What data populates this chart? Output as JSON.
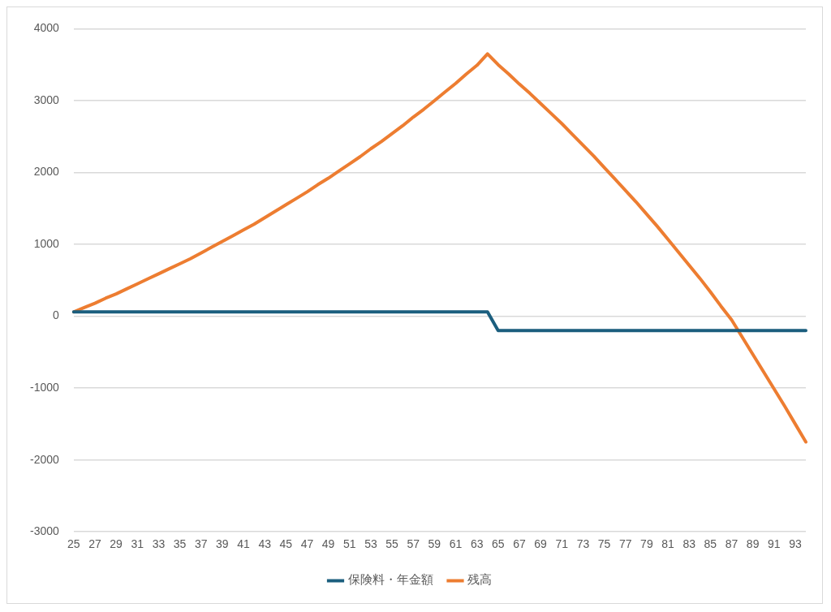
{
  "chart_data": {
    "type": "line",
    "categories": [
      "25",
      null,
      "27",
      null,
      "29",
      null,
      "31",
      null,
      "33",
      null,
      "35",
      null,
      "37",
      null,
      "39",
      null,
      "41",
      null,
      "43",
      null,
      "45",
      null,
      "47",
      null,
      "49",
      null,
      "51",
      null,
      "53",
      null,
      "55",
      null,
      "57",
      null,
      "59",
      null,
      "61",
      null,
      "63",
      null,
      "65",
      null,
      "67",
      null,
      "69",
      null,
      "71",
      null,
      "73",
      null,
      "75",
      null,
      "77",
      null,
      "79",
      null,
      "81",
      null,
      "83",
      null,
      "85",
      null,
      "87",
      null,
      "89",
      null,
      "91",
      null,
      "93",
      null
    ],
    "series": [
      {
        "name": "保険料・年金額",
        "color": "#1b5e7e",
        "values": [
          60,
          60,
          60,
          60,
          60,
          60,
          60,
          60,
          60,
          60,
          60,
          60,
          60,
          60,
          60,
          60,
          60,
          60,
          60,
          60,
          60,
          60,
          60,
          60,
          60,
          60,
          60,
          60,
          60,
          60,
          60,
          60,
          60,
          60,
          60,
          60,
          60,
          60,
          60,
          60,
          -200,
          -200,
          -200,
          -200,
          -200,
          -200,
          -200,
          -200,
          -200,
          -200,
          -200,
          -200,
          -200,
          -200,
          -200,
          -200,
          -200,
          -200,
          -200,
          -200,
          -200,
          -200,
          -200,
          -200,
          -200,
          -200,
          -200,
          -200,
          -200,
          -200
        ]
      },
      {
        "name": "残高",
        "color": "#ed7d31",
        "values": [
          60,
          120,
          180,
          250,
          310,
          380,
          450,
          520,
          590,
          660,
          730,
          800,
          880,
          960,
          1040,
          1120,
          1200,
          1280,
          1370,
          1460,
          1550,
          1640,
          1730,
          1830,
          1920,
          2020,
          2120,
          2220,
          2330,
          2430,
          2540,
          2650,
          2770,
          2880,
          3000,
          3120,
          3240,
          3370,
          3490,
          3650,
          3500,
          3370,
          3230,
          3100,
          2960,
          2820,
          2680,
          2530,
          2380,
          2230,
          2070,
          1910,
          1750,
          1590,
          1420,
          1250,
          1070,
          890,
          710,
          530,
          340,
          140,
          -50,
          -290,
          -530,
          -770,
          -1010,
          -1250,
          -1500,
          -1750
        ]
      }
    ],
    "ylim": [
      -3000,
      4000
    ],
    "yticks": [
      -3000,
      -2000,
      -1000,
      0,
      1000,
      2000,
      3000,
      4000
    ],
    "grid": "y",
    "legend": "bottom",
    "marker": "none",
    "line_style": "solid"
  }
}
